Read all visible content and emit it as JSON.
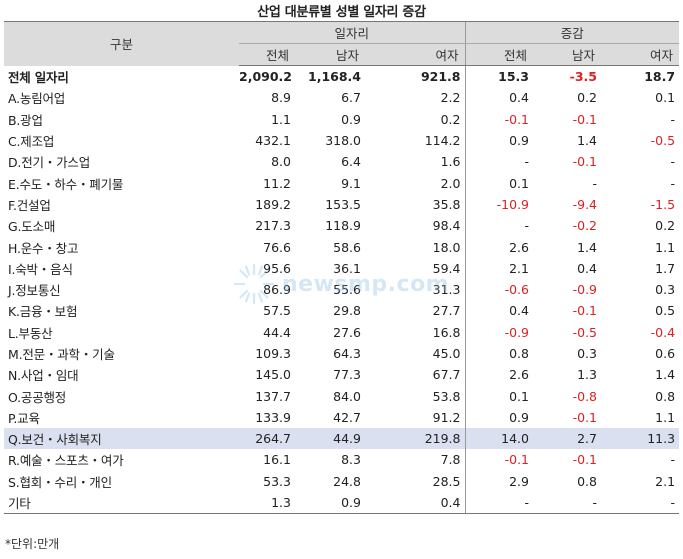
{
  "title": "산업 대분류별 성별 일자리 증감",
  "header": {
    "category": "구분",
    "group1": "일자리",
    "group2": "증감",
    "sub": [
      "전체",
      "남자",
      "여자",
      "전체",
      "남자",
      "여자"
    ]
  },
  "rows": [
    {
      "name": "전체 일자리",
      "v": [
        "2,090.2",
        "1,168.4",
        "921.8",
        "15.3",
        "-3.5",
        "18.7"
      ]
    },
    {
      "name": "A.농림어업",
      "v": [
        "8.9",
        "6.7",
        "2.2",
        "0.4",
        "0.2",
        "0.1"
      ]
    },
    {
      "name": "B.광업",
      "v": [
        "1.1",
        "0.9",
        "0.2",
        "-0.1",
        "-0.1",
        "-"
      ]
    },
    {
      "name": "C.제조업",
      "v": [
        "432.1",
        "318.0",
        "114.2",
        "0.9",
        "1.4",
        "-0.5"
      ]
    },
    {
      "name": "D.전기・가스업",
      "v": [
        "8.0",
        "6.4",
        "1.6",
        "-",
        "-0.1",
        "-"
      ]
    },
    {
      "name": "E.수도・하수・폐기물",
      "v": [
        "11.2",
        "9.1",
        "2.0",
        "0.1",
        "-",
        "-"
      ]
    },
    {
      "name": "F.건설업",
      "v": [
        "189.2",
        "153.5",
        "35.8",
        "-10.9",
        "-9.4",
        "-1.5"
      ]
    },
    {
      "name": "G.도소매",
      "v": [
        "217.3",
        "118.9",
        "98.4",
        "-",
        "-0.2",
        "0.2"
      ]
    },
    {
      "name": "H.운수・창고",
      "v": [
        "76.6",
        "58.6",
        "18.0",
        "2.6",
        "1.4",
        "1.1"
      ]
    },
    {
      "name": "I.숙박・음식",
      "v": [
        "95.6",
        "36.1",
        "59.4",
        "2.1",
        "0.4",
        "1.7"
      ]
    },
    {
      "name": "J.정보통신",
      "v": [
        "86.9",
        "55.6",
        "31.3",
        "-0.6",
        "-0.9",
        "0.3"
      ]
    },
    {
      "name": "K.금융・보험",
      "v": [
        "57.5",
        "29.8",
        "27.7",
        "0.4",
        "-0.1",
        "0.5"
      ]
    },
    {
      "name": "L.부동산",
      "v": [
        "44.4",
        "27.6",
        "16.8",
        "-0.9",
        "-0.5",
        "-0.4"
      ]
    },
    {
      "name": "M.전문・과학・기술",
      "v": [
        "109.3",
        "64.3",
        "45.0",
        "0.8",
        "0.3",
        "0.6"
      ]
    },
    {
      "name": "N.사업・임대",
      "v": [
        "145.0",
        "77.3",
        "67.7",
        "2.6",
        "1.3",
        "1.4"
      ]
    },
    {
      "name": "O.공공행정",
      "v": [
        "137.7",
        "84.0",
        "53.8",
        "0.1",
        "-0.8",
        "0.8"
      ]
    },
    {
      "name": "P.교육",
      "v": [
        "133.9",
        "42.7",
        "91.2",
        "0.9",
        "-0.1",
        "1.1"
      ]
    },
    {
      "name": "Q.보건・사회복지",
      "v": [
        "264.7",
        "44.9",
        "219.8",
        "14.0",
        "2.7",
        "11.3"
      ]
    },
    {
      "name": "R.예술・스포츠・여가",
      "v": [
        "16.1",
        "8.3",
        "7.8",
        "-0.1",
        "-0.1",
        "-"
      ]
    },
    {
      "name": "S.협회・수리・개인",
      "v": [
        "53.3",
        "24.8",
        "28.5",
        "2.9",
        "0.8",
        "2.1"
      ]
    },
    {
      "name": "기타",
      "v": [
        "1.3",
        "0.9",
        "0.4",
        "-",
        "-",
        "-"
      ]
    }
  ],
  "highlight_row": "Q.보건・사회복지",
  "note": "*단위:만개",
  "watermark": "newsmp.com",
  "colors": {
    "negative": "#e02020",
    "header_bg": "#dcdcdc",
    "highlight_bg": "#dbe0f1",
    "watermark": "#7fb6e0"
  }
}
